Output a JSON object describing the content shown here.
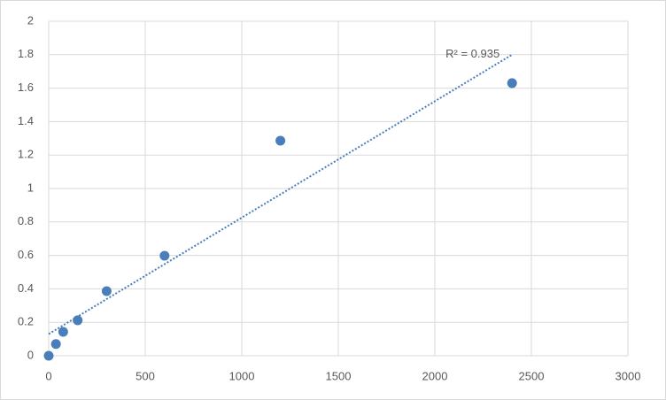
{
  "chart_data": {
    "type": "scatter",
    "series": [
      {
        "color": "#4a7ebb",
        "x": [
          0,
          37.5,
          75,
          150,
          300,
          600,
          1200,
          2400
        ],
        "values": [
          0,
          0.07,
          0.143,
          0.212,
          0.386,
          0.598,
          1.286,
          1.63
        ]
      }
    ],
    "trendline": {
      "x": [
        0,
        2400
      ],
      "y": [
        0.13,
        1.8
      ],
      "label": "R² = 0.935",
      "color": "#4a7ebb"
    },
    "xlim": [
      0,
      3000
    ],
    "xticks": [
      0,
      500,
      1000,
      1500,
      2000,
      2500,
      3000
    ],
    "ylim": [
      0,
      2
    ],
    "yticks": [
      0,
      0.2,
      0.4,
      0.6,
      0.8,
      1,
      1.2,
      1.4,
      1.6,
      1.8,
      2
    ],
    "grid": true
  }
}
